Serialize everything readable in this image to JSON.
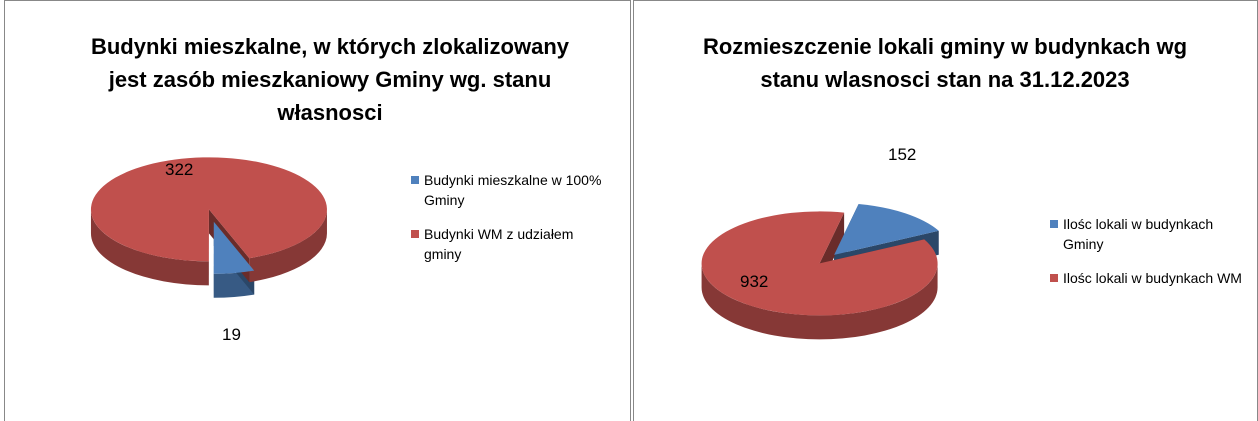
{
  "chart_data": [
    {
      "type": "pie",
      "title": "Budynki mieszkalne, w których zlokalizowany jest zasób mieszkaniowy Gminy wg. stanu własnosci",
      "categories": [
        "Budynki mieszkalne w 100% Gminy",
        "Budynki WM z udziałem gminy"
      ],
      "values": [
        19,
        322
      ],
      "colors": [
        "#4f81bd",
        "#c0504d"
      ]
    },
    {
      "type": "pie",
      "title": "Rozmieszczenie lokali gminy w budynkach wg stanu wlasnosci stan na 31.12.2023",
      "categories": [
        "Ilośc lokali w budynkach Gminy",
        "Ilośc lokali w budynkach WM"
      ],
      "values": [
        152,
        932
      ],
      "colors": [
        "#4f81bd",
        "#c0504d"
      ]
    }
  ]
}
